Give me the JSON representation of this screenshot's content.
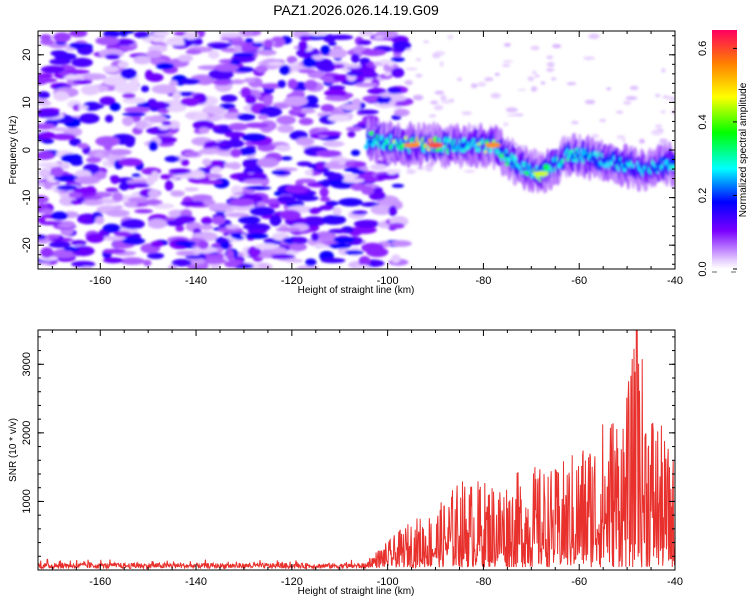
{
  "title": "PAZ1.2026.026.14.19.G09",
  "chart_data": [
    {
      "type": "heatmap",
      "xlabel": "Height of straight line (km)",
      "ylabel": "Frequency (Hz)",
      "xlim": [
        -173,
        -40
      ],
      "ylim": [
        -25,
        25
      ],
      "xticks": [
        -160,
        -140,
        -120,
        -100,
        -80,
        -60,
        -40
      ],
      "xtick_labels": [
        "-160",
        "-140",
        "-120",
        "-100",
        "-80",
        "-60",
        "-40"
      ],
      "yticks": [
        -20,
        -10,
        0,
        10,
        20
      ],
      "ytick_labels": [
        "-20",
        "-10",
        "0",
        "10",
        "20"
      ],
      "colorbar": {
        "label": "Normalized spectral amplitude",
        "range": [
          0,
          0.65
        ],
        "ticks": [
          0,
          0.2,
          0.4,
          0.6
        ],
        "tick_labels": [
          "0.0",
          "0.2",
          "0.4",
          "0.6"
        ]
      },
      "description_features": {
        "noise_region_x": [
          -173,
          -103
        ],
        "signal_track": [
          {
            "x": -103,
            "freq": 2,
            "amp": 0.35
          },
          {
            "x": -95,
            "freq": 1,
            "amp": 0.55
          },
          {
            "x": -90,
            "freq": 1,
            "amp": 0.6
          },
          {
            "x": -85,
            "freq": 1,
            "amp": 0.3
          },
          {
            "x": -78,
            "freq": 1,
            "amp": 0.55
          },
          {
            "x": -73,
            "freq": -3,
            "amp": 0.3
          },
          {
            "x": -68,
            "freq": -5,
            "amp": 0.45
          },
          {
            "x": -62,
            "freq": -1,
            "amp": 0.35
          },
          {
            "x": -55,
            "freq": -2,
            "amp": 0.25
          },
          {
            "x": -48,
            "freq": -4,
            "amp": 0.2
          },
          {
            "x": -42,
            "freq": -3,
            "amp": 0.3
          }
        ]
      }
    },
    {
      "type": "line",
      "xlabel": "Height of straight line (km)",
      "ylabel": "SNR (10 * v/v)",
      "xlim": [
        -173,
        -40
      ],
      "ylim": [
        0,
        3500
      ],
      "xticks": [
        -160,
        -140,
        -120,
        -100,
        -80,
        -60,
        -40
      ],
      "xtick_labels": [
        "-160",
        "-140",
        "-120",
        "-100",
        "-80",
        "-60",
        "-40"
      ],
      "yticks": [
        1000,
        2000,
        3000
      ],
      "ytick_labels": [
        "1000",
        "2000",
        "3000"
      ],
      "series": [
        {
          "name": "SNR",
          "color": "#e8302c",
          "envelope": [
            {
              "x": -173,
              "max": 160
            },
            {
              "x": -104,
              "max": 150
            },
            {
              "x": -100,
              "max": 380
            },
            {
              "x": -95,
              "max": 700
            },
            {
              "x": -90,
              "max": 850
            },
            {
              "x": -85,
              "max": 1300
            },
            {
              "x": -80,
              "max": 1280
            },
            {
              "x": -75,
              "max": 1330
            },
            {
              "x": -70,
              "max": 1500
            },
            {
              "x": -65,
              "max": 1450
            },
            {
              "x": -60,
              "max": 1800
            },
            {
              "x": -55,
              "max": 2200
            },
            {
              "x": -50,
              "max": 2600
            },
            {
              "x": -48,
              "max": 3500
            },
            {
              "x": -45,
              "max": 2500
            },
            {
              "x": -42,
              "max": 1900
            },
            {
              "x": -40,
              "max": 1600
            }
          ]
        }
      ]
    }
  ]
}
